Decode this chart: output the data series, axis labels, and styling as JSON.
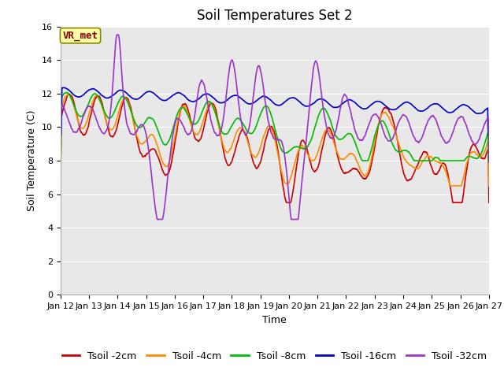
{
  "title": "Soil Temperatures Set 2",
  "xlabel": "Time",
  "ylabel": "Soil Temperature (C)",
  "ylim": [
    0,
    16
  ],
  "yticks": [
    0,
    2,
    4,
    6,
    8,
    10,
    12,
    14,
    16
  ],
  "x_tick_labels": [
    "Jan 12",
    "Jan 13",
    "Jan 14",
    "Jan 15",
    "Jan 16",
    "Jan 17",
    "Jan 18",
    "Jan 19",
    "Jan 20",
    "Jan 21",
    "Jan 22",
    "Jan 23",
    "Jan 24",
    "Jan 25",
    "Jan 26",
    "Jan 27"
  ],
  "legend_labels": [
    "Tsoil -2cm",
    "Tsoil -4cm",
    "Tsoil -8cm",
    "Tsoil -16cm",
    "Tsoil -32cm"
  ],
  "colors": [
    "#cc0000",
    "#ff8c00",
    "#00bb00",
    "#0000cc",
    "#9933cc"
  ],
  "vr_met_label": "VR_met",
  "vr_met_text_color": "#880000",
  "vr_met_bg": "#ffffaa",
  "vr_met_edge": "#888800",
  "plot_bg": "#e8e8e8",
  "fig_bg": "#ffffff",
  "grid_color": "#ffffff",
  "linewidth": 1.2,
  "tick_fontsize": 8,
  "label_fontsize": 9,
  "title_fontsize": 12,
  "legend_fontsize": 9
}
